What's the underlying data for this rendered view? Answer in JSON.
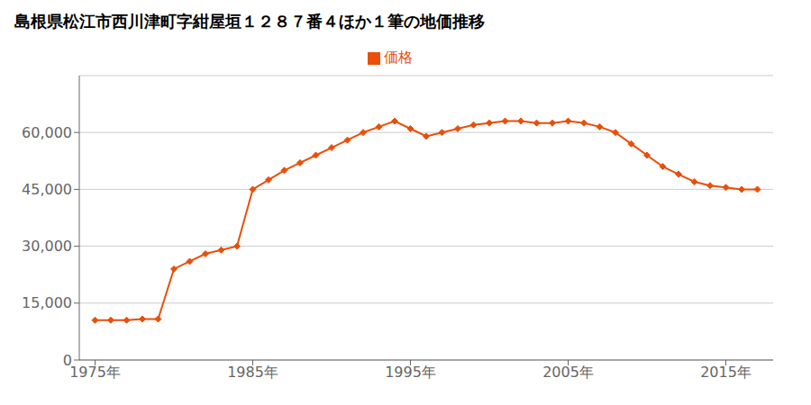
{
  "chart_data": {
    "type": "line",
    "title": "島根県松江市西川津町字紺屋垣１２８７番４ほか１筆の地価推移",
    "x": [
      1975,
      1976,
      1977,
      1978,
      1979,
      1980,
      1981,
      1982,
      1983,
      1984,
      1985,
      1986,
      1987,
      1988,
      1989,
      1990,
      1991,
      1992,
      1993,
      1994,
      1995,
      1996,
      1997,
      1998,
      1999,
      2000,
      2001,
      2002,
      2003,
      2004,
      2005,
      2006,
      2007,
      2008,
      2009,
      2010,
      2011,
      2012,
      2013,
      2014,
      2015,
      2016,
      2017
    ],
    "series": [
      {
        "name": "価格",
        "color": "#E8500A",
        "marker": "diamond",
        "values": [
          10500,
          10500,
          10500,
          10800,
          10800,
          24000,
          26000,
          28000,
          29000,
          30000,
          45000,
          47500,
          50000,
          52000,
          54000,
          56000,
          58000,
          60000,
          61500,
          63000,
          61000,
          59000,
          60000,
          61000,
          62000,
          62500,
          63000,
          63000,
          62500,
          62500,
          63000,
          62500,
          61500,
          60000,
          57000,
          54000,
          51000,
          49000,
          47000,
          46000,
          45500,
          45000,
          45000
        ]
      }
    ],
    "xlim": [
      1974,
      2018
    ],
    "xticks": [
      {
        "value": 1975,
        "label": "1975年"
      },
      {
        "value": 1985,
        "label": "1985年"
      },
      {
        "value": 1995,
        "label": "1995年"
      },
      {
        "value": 2005,
        "label": "2005年"
      },
      {
        "value": 2015,
        "label": "2015年"
      }
    ],
    "ylim": [
      0,
      75000
    ],
    "yticks": [
      0,
      {
        "value": 15000,
        "label": "15,000"
      },
      {
        "value": 30000,
        "label": "30,000"
      },
      {
        "value": 45000,
        "label": "45,000"
      },
      {
        "value": 60000,
        "label": "60,000"
      }
    ],
    "grid": "y",
    "legend": "top"
  }
}
